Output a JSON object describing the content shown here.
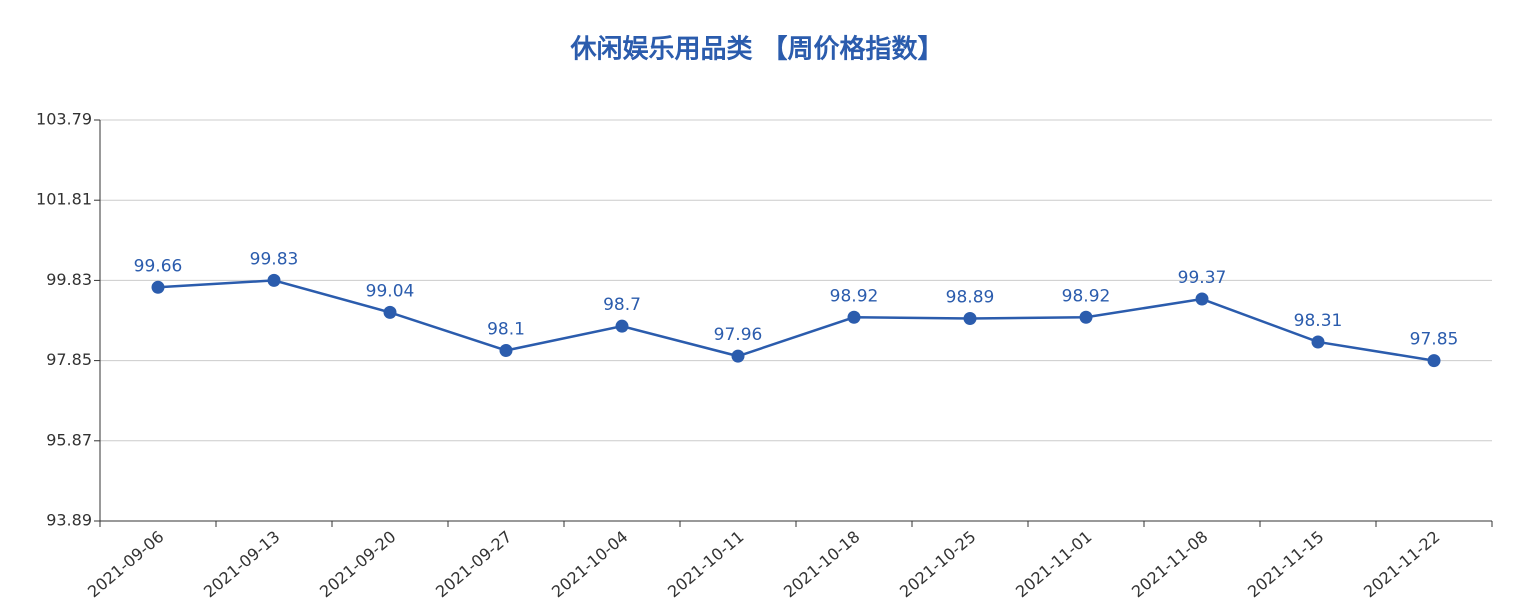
{
  "chart_data": {
    "type": "line",
    "title": "休闲娱乐用品类 【周价格指数】",
    "categories": [
      "2021-09-06",
      "2021-09-13",
      "2021-09-20",
      "2021-09-27",
      "2021-10-04",
      "2021-10-11",
      "2021-10-18",
      "2021-10-25",
      "2021-11-01",
      "2021-11-08",
      "2021-11-15",
      "2021-11-22"
    ],
    "series": [
      {
        "color": "#2b5cad",
        "values": [
          99.66,
          99.83,
          99.04,
          98.1,
          98.7,
          97.96,
          98.92,
          98.89,
          98.92,
          99.37,
          98.31,
          97.85
        ]
      }
    ],
    "ylim": [
      93.89,
      103.79
    ],
    "yticks": [
      93.89,
      95.87,
      97.85,
      99.83,
      101.81,
      103.79
    ],
    "grid": true
  }
}
